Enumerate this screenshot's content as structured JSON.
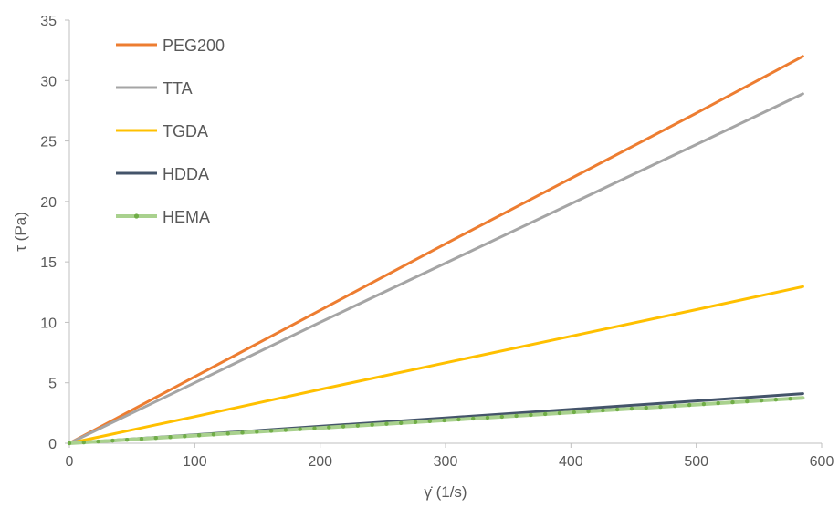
{
  "chart_data": {
    "type": "line",
    "title": "",
    "xlabel": "γ̇ (1/s)",
    "ylabel": "τ (Pa)",
    "xlim": [
      0,
      600
    ],
    "ylim": [
      0,
      35
    ],
    "x_ticks": [
      0,
      100,
      200,
      300,
      400,
      500,
      600
    ],
    "y_ticks": [
      0,
      5,
      10,
      15,
      20,
      25,
      30,
      35
    ],
    "grid": false,
    "legend_position": "top-left",
    "series": [
      {
        "name": "PEG200",
        "color": "#ED7D31",
        "marker": "none",
        "x": [
          0,
          100,
          200,
          300,
          400,
          500,
          585
        ],
        "y": [
          0,
          5.5,
          11.0,
          16.5,
          21.9,
          27.3,
          32.0
        ]
      },
      {
        "name": "TTA",
        "color": "#A5A5A5",
        "marker": "none",
        "x": [
          0,
          100,
          200,
          300,
          400,
          500,
          585
        ],
        "y": [
          0,
          5.0,
          10.0,
          14.9,
          19.8,
          24.7,
          28.9
        ]
      },
      {
        "name": "TGDA",
        "color": "#FFC000",
        "marker": "none",
        "x": [
          0,
          100,
          200,
          300,
          400,
          500,
          585
        ],
        "y": [
          0,
          2.2,
          4.45,
          6.65,
          8.85,
          11.05,
          12.95
        ]
      },
      {
        "name": "HDDA",
        "color": "#44546A",
        "marker": "none",
        "x": [
          0,
          100,
          200,
          300,
          400,
          500,
          585
        ],
        "y": [
          0,
          0.7,
          1.4,
          2.1,
          2.8,
          3.5,
          4.1
        ]
      },
      {
        "name": "HEMA",
        "color": "#70AD47",
        "marker": "dot",
        "x": [
          0,
          100,
          200,
          300,
          400,
          500,
          585
        ],
        "y": [
          0,
          0.63,
          1.27,
          1.9,
          2.55,
          3.2,
          3.75
        ]
      }
    ]
  }
}
